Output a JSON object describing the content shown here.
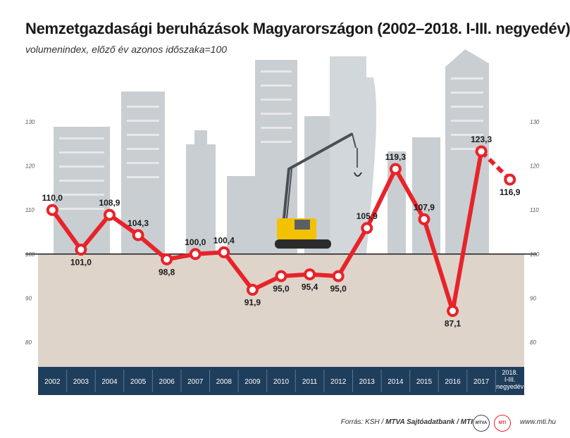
{
  "header": {
    "title": "Nemzetgazdasági beruházások Magyarországon (2002–2018. I-III. negyedév)",
    "subtitle": "volumenindex, előző év azonos időszaka=100"
  },
  "footer": {
    "source_prefix": "Forrás: KSH / ",
    "source_bold": "MTVA Sajtóadatbank / MTI",
    "logo1": "MTVA",
    "logo2": "MTI",
    "site": "www.mti.hu"
  },
  "colors": {
    "line": "#e8232a",
    "axis_band": "#1f3e5c",
    "lower_area": "#ded4ca",
    "buildings": "#c9ced2"
  },
  "chart_data": {
    "type": "line",
    "title": "Nemzetgazdasági beruházások Magyarországon (2002–2018. I-III. negyedév)",
    "subtitle": "volumenindex, előző év azonos időszaka=100",
    "categories": [
      "2002",
      "2003",
      "2004",
      "2005",
      "2006",
      "2007",
      "2008",
      "2009",
      "2010",
      "2011",
      "2012",
      "2013",
      "2014",
      "2015",
      "2016",
      "2017",
      "2018. I-III. negyedév"
    ],
    "values": [
      110.0,
      101.0,
      108.9,
      104.3,
      98.8,
      100.0,
      100.4,
      91.9,
      95.0,
      95.4,
      95.0,
      105.9,
      119.3,
      107.9,
      87.1,
      123.3,
      116.9
    ],
    "value_labels": [
      "110,0",
      "101,0",
      "108,9",
      "104,3",
      "98,8",
      "100,0",
      "100,4",
      "91,9",
      "95,0",
      "95,4",
      "95,0",
      "105,9",
      "119,3",
      "107,9",
      "87,1",
      "123,3",
      "116,9"
    ],
    "y_ticks": [
      "130",
      "120",
      "110",
      "100",
      "90",
      "80"
    ],
    "y_tick_values": [
      130,
      120,
      110,
      100,
      90,
      80
    ],
    "ylim": [
      75,
      130
    ],
    "baseline": 100,
    "last_segment_dashed": true,
    "grid": false,
    "legend": "none"
  }
}
